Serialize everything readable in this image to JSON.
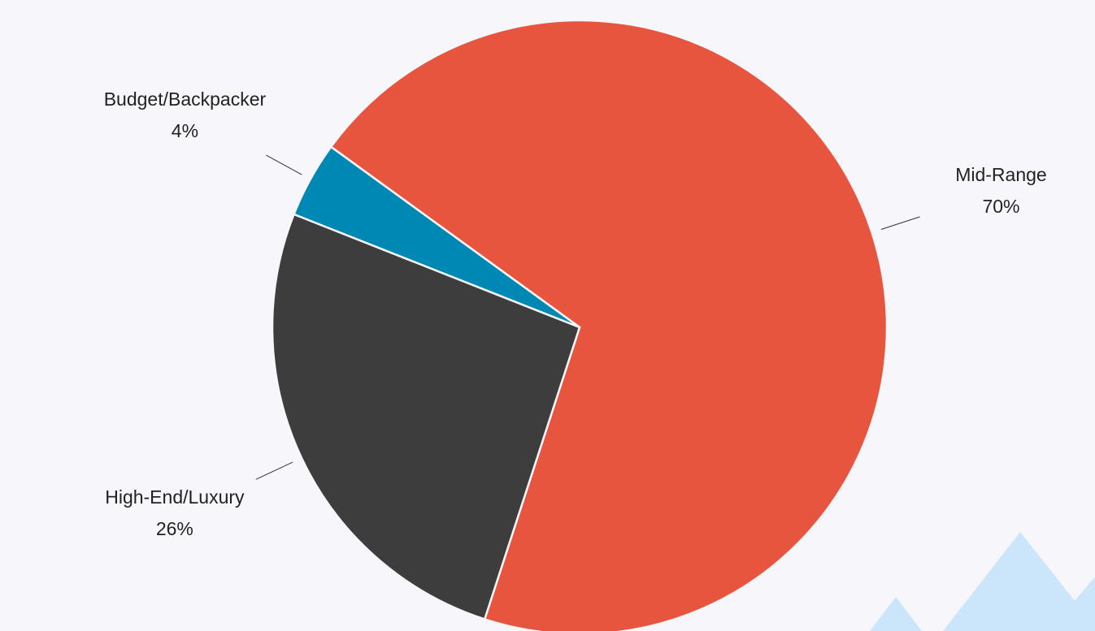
{
  "chart_data": {
    "type": "pie",
    "categories": [
      "Mid-Range",
      "High-End/Luxury",
      "Budget/Backpacker"
    ],
    "values": [
      70,
      26,
      4
    ],
    "value_labels": [
      "70%",
      "26%",
      "4%"
    ],
    "colors": [
      "#e8553f",
      "#3d3d3d",
      "#0088b5"
    ]
  }
}
